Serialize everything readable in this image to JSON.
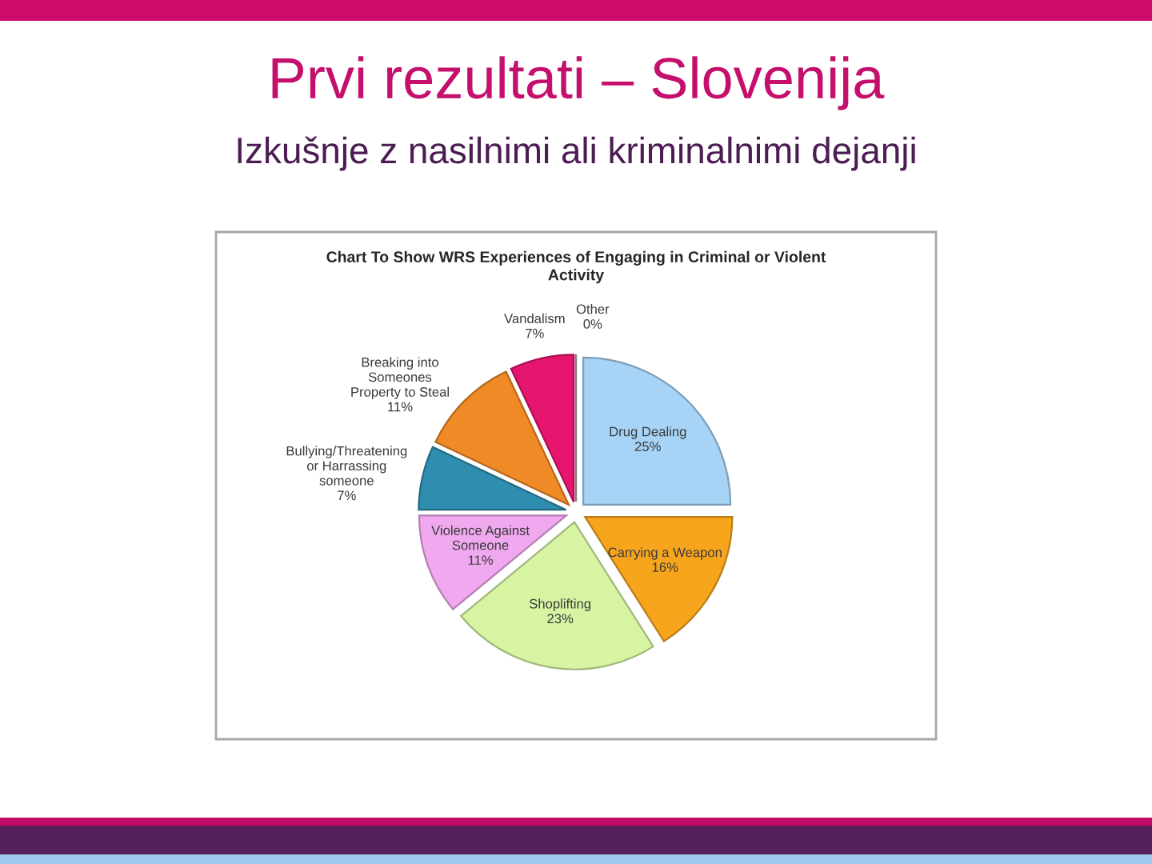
{
  "chart_data": {
    "type": "pie",
    "title": "Prvi rezultati – Slovenija",
    "subtitle": "Izkušnje z nasilnimi ali kriminalnimi dejanji",
    "annotations": [
      "Chart To Show WRS Experiences of Engaging in Criminal or Violent Activity"
    ],
    "categories": [
      "Drug Dealing",
      "Carrying a Weapon",
      "Shoplifting",
      "Violence Against Someone",
      "Bullying/Threatening or Harrassing someone",
      "Breaking into Someones Property to Steal",
      "Vandalism",
      "Other"
    ],
    "values": [
      25,
      16,
      23,
      11,
      7,
      11,
      7,
      0
    ],
    "colors": [
      "#a6d3f6",
      "#f8a51e",
      "#d6f4a2",
      "#f0a9ee",
      "#2f8db0",
      "#f08a26",
      "#e6156e",
      "#a6a6a6"
    ],
    "value_labels": [
      "25%",
      "16%",
      "23%",
      "11%",
      "7%",
      "11%",
      "7%",
      "0%"
    ]
  }
}
